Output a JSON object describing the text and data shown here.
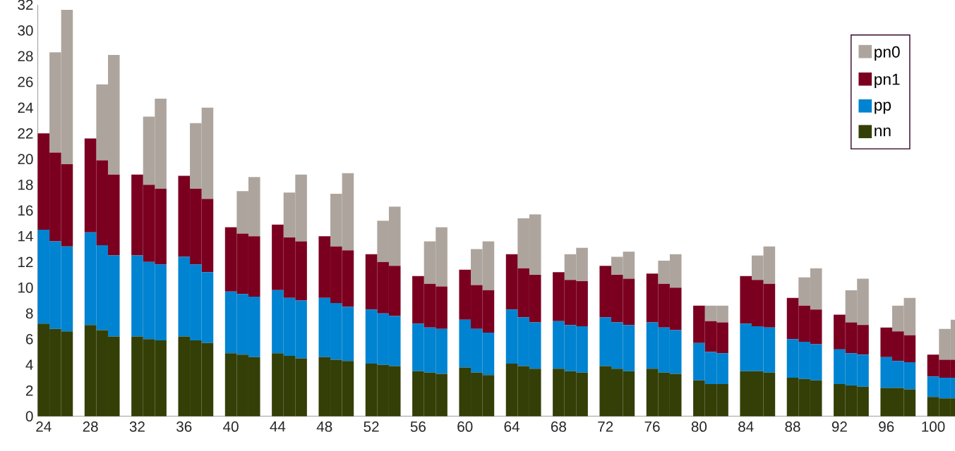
{
  "chart_data": {
    "type": "bar",
    "stacked": true,
    "x": [
      24,
      25,
      26,
      28,
      29,
      30,
      32,
      33,
      34,
      36,
      37,
      38,
      40,
      41,
      42,
      44,
      45,
      46,
      48,
      49,
      50,
      52,
      53,
      54,
      56,
      57,
      58,
      60,
      61,
      62,
      64,
      65,
      66,
      68,
      69,
      70,
      72,
      73,
      74,
      76,
      77,
      78,
      80,
      81,
      82,
      84,
      85,
      86,
      88,
      89,
      90,
      92,
      93,
      94,
      96,
      97,
      98,
      100,
      101,
      102
    ],
    "series": [
      {
        "name": "nn",
        "color": "#333f06",
        "values": [
          7.2,
          6.8,
          6.6,
          7.1,
          6.7,
          6.2,
          6.2,
          6.0,
          5.9,
          6.2,
          5.9,
          5.7,
          4.9,
          4.8,
          4.6,
          4.9,
          4.7,
          4.5,
          4.6,
          4.4,
          4.3,
          4.1,
          4.0,
          3.9,
          3.5,
          3.4,
          3.3,
          3.8,
          3.4,
          3.2,
          4.1,
          3.9,
          3.7,
          3.7,
          3.5,
          3.4,
          3.9,
          3.7,
          3.5,
          3.7,
          3.4,
          3.3,
          2.8,
          2.5,
          2.5,
          3.5,
          3.5,
          3.4,
          3.0,
          2.9,
          2.8,
          2.5,
          2.4,
          2.3,
          2.2,
          2.2,
          2.1,
          1.5,
          1.4,
          1.4
        ]
      },
      {
        "name": "pp",
        "color": "#0083d0",
        "values": [
          7.3,
          6.8,
          6.6,
          7.2,
          6.6,
          6.3,
          6.3,
          6.0,
          5.9,
          6.2,
          5.9,
          5.5,
          4.8,
          4.7,
          4.7,
          4.9,
          4.5,
          4.5,
          4.6,
          4.4,
          4.2,
          4.2,
          4.0,
          3.9,
          3.7,
          3.5,
          3.5,
          3.7,
          3.4,
          3.3,
          4.2,
          3.8,
          3.6,
          3.7,
          3.6,
          3.6,
          3.8,
          3.6,
          3.6,
          3.6,
          3.5,
          3.4,
          2.9,
          2.5,
          2.4,
          3.7,
          3.5,
          3.5,
          3.0,
          2.9,
          2.8,
          2.7,
          2.5,
          2.5,
          2.4,
          2.1,
          2.1,
          1.6,
          1.6,
          1.6
        ]
      },
      {
        "name": "pn1",
        "color": "#7b0020",
        "values": [
          7.5,
          6.9,
          6.4,
          7.3,
          6.6,
          6.3,
          6.3,
          6.0,
          5.9,
          6.3,
          5.9,
          5.7,
          5.0,
          4.7,
          4.7,
          5.1,
          4.7,
          4.6,
          4.8,
          4.4,
          4.4,
          4.3,
          4.0,
          3.9,
          3.7,
          3.4,
          3.3,
          3.9,
          3.4,
          3.3,
          4.3,
          3.8,
          3.7,
          3.8,
          3.5,
          3.5,
          4.0,
          3.7,
          3.6,
          3.8,
          3.4,
          3.3,
          2.9,
          2.4,
          2.4,
          3.7,
          3.6,
          3.4,
          3.2,
          2.8,
          2.7,
          2.7,
          2.4,
          2.3,
          2.3,
          2.3,
          2.1,
          1.7,
          1.4,
          1.4
        ]
      },
      {
        "name": "pn0",
        "color": "#ada59d",
        "values": [
          null,
          7.8,
          12.0,
          null,
          5.9,
          9.3,
          null,
          5.3,
          7.0,
          null,
          5.1,
          7.1,
          null,
          3.3,
          4.6,
          null,
          3.5,
          5.2,
          null,
          4.1,
          6.0,
          null,
          3.2,
          4.6,
          null,
          3.3,
          4.6,
          null,
          2.8,
          3.8,
          null,
          3.9,
          4.7,
          null,
          2.0,
          2.6,
          null,
          1.4,
          2.1,
          null,
          1.8,
          2.6,
          null,
          1.2,
          1.3,
          null,
          1.9,
          2.9,
          null,
          2.2,
          3.2,
          null,
          2.5,
          3.6,
          null,
          2.0,
          2.9,
          null,
          2.4,
          3.1
        ]
      }
    ],
    "xlim": [
      23.5,
      102.5
    ],
    "xticks": [
      24,
      28,
      32,
      36,
      40,
      44,
      48,
      52,
      56,
      60,
      64,
      68,
      72,
      76,
      80,
      84,
      88,
      92,
      96,
      100
    ],
    "ylim": [
      0,
      32
    ],
    "yticks": [
      0,
      2,
      4,
      6,
      8,
      10,
      12,
      14,
      16,
      18,
      20,
      22,
      24,
      26,
      28,
      30,
      32
    ],
    "legend": "top right"
  }
}
